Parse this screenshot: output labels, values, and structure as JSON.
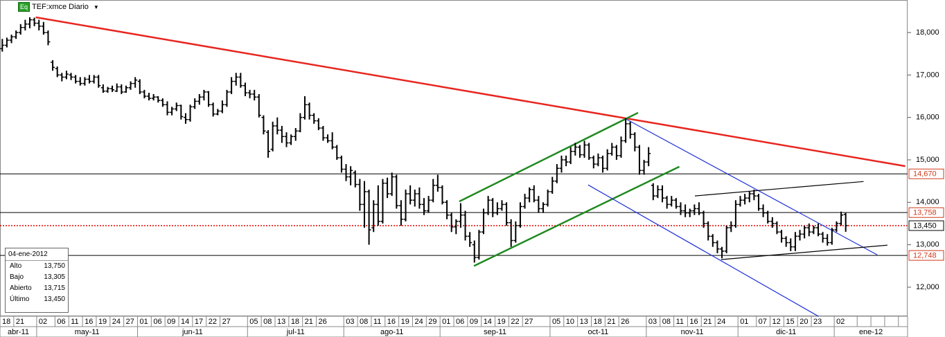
{
  "chart_data": {
    "type": "ohlc",
    "badge": "Eq",
    "title": "TEF:xmce Diario",
    "color": "#000000",
    "ylim": [
      11.315,
      18.767
    ],
    "yticks": [
      {
        "value": 12,
        "label": "12,000"
      },
      {
        "value": 13,
        "label": "13,000"
      },
      {
        "value": 14,
        "label": "14,000"
      },
      {
        "value": 15,
        "label": "15,000"
      },
      {
        "value": 16,
        "label": "16,000"
      },
      {
        "value": 17,
        "label": "17,000"
      },
      {
        "value": 18,
        "label": "18,000"
      }
    ],
    "months": [
      "abr-11",
      "may-11",
      "jun-11",
      "jul-11",
      "ago-11",
      "sep-11",
      "oct-11",
      "nov-11",
      "dic-11",
      "ene-12"
    ],
    "categories": [
      "18",
      null,
      null,
      "21",
      null,
      null,
      null,
      null,
      "02",
      null,
      null,
      null,
      "06",
      null,
      null,
      "11",
      null,
      null,
      "16",
      null,
      null,
      "19",
      null,
      null,
      "24",
      null,
      null,
      "27",
      null,
      null,
      "01",
      null,
      null,
      "06",
      null,
      null,
      "09",
      null,
      null,
      "14",
      null,
      null,
      "17",
      null,
      null,
      "22",
      null,
      null,
      "27",
      null,
      null,
      null,
      null,
      null,
      "05",
      null,
      null,
      "08",
      null,
      null,
      "13",
      null,
      null,
      "18",
      null,
      null,
      "21",
      null,
      null,
      "26",
      null,
      null,
      null,
      null,
      null,
      "03",
      null,
      null,
      "08",
      null,
      null,
      "11",
      null,
      null,
      "16",
      null,
      null,
      "19",
      null,
      null,
      "24",
      null,
      null,
      "29",
      null,
      null,
      "01",
      null,
      null,
      "06",
      null,
      null,
      "09",
      null,
      null,
      "14",
      null,
      null,
      "19",
      null,
      null,
      "22",
      null,
      null,
      "27",
      null,
      null,
      null,
      null,
      null,
      "05",
      null,
      null,
      "10",
      null,
      null,
      "13",
      null,
      null,
      "18",
      null,
      null,
      "21",
      null,
      null,
      "26",
      null,
      null,
      null,
      null,
      null,
      "03",
      null,
      null,
      "08",
      null,
      null,
      "11",
      null,
      null,
      "16",
      null,
      null,
      "21",
      null,
      null,
      "24",
      null,
      null,
      null,
      null,
      "01",
      null,
      null,
      null,
      "07",
      null,
      null,
      "12",
      null,
      null,
      "15",
      null,
      null,
      "20",
      null,
      null,
      "23",
      null,
      null,
      null,
      null,
      "02",
      null,
      null,
      null,
      null,
      null,
      null,
      null,
      null,
      null,
      null,
      null,
      null,
      null,
      null,
      null
    ],
    "ohlc": [
      [
        17.62,
        17.85,
        17.55,
        17.7
      ],
      [
        17.7,
        17.88,
        17.65,
        17.82
      ],
      [
        17.82,
        17.95,
        17.75,
        17.9
      ],
      [
        17.9,
        18.05,
        17.85,
        18.0
      ],
      [
        18.0,
        18.2,
        17.95,
        18.12
      ],
      [
        18.12,
        18.3,
        18.05,
        18.2
      ],
      [
        18.2,
        18.36,
        18.1,
        18.3
      ],
      [
        18.3,
        18.35,
        18.15,
        18.22
      ],
      [
        18.22,
        18.3,
        18.05,
        18.15
      ],
      [
        18.15,
        18.25,
        17.95,
        18.0
      ],
      [
        18.0,
        18.05,
        17.7,
        17.78
      ],
      [
        17.3,
        17.35,
        17.1,
        17.18
      ],
      [
        17.15,
        17.2,
        16.95,
        17.0
      ],
      [
        17.0,
        17.05,
        16.85,
        16.95
      ],
      [
        16.95,
        17.1,
        16.9,
        17.02
      ],
      [
        17.0,
        17.05,
        16.88,
        16.95
      ],
      [
        16.95,
        17.0,
        16.8,
        16.85
      ],
      [
        16.85,
        16.95,
        16.75,
        16.8
      ],
      [
        16.8,
        16.95,
        16.75,
        16.9
      ],
      [
        16.9,
        17.0,
        16.8,
        16.85
      ],
      [
        16.85,
        17.0,
        16.8,
        16.95
      ],
      [
        16.95,
        17.0,
        16.7,
        16.75
      ],
      [
        16.7,
        16.78,
        16.58,
        16.62
      ],
      [
        16.62,
        16.72,
        16.58,
        16.68
      ],
      [
        16.68,
        16.75,
        16.6,
        16.65
      ],
      [
        16.62,
        16.8,
        16.6,
        16.72
      ],
      [
        16.72,
        16.78,
        16.55,
        16.6
      ],
      [
        16.6,
        16.75,
        16.58,
        16.7
      ],
      [
        16.7,
        16.85,
        16.65,
        16.8
      ],
      [
        16.8,
        16.95,
        16.7,
        16.88
      ],
      [
        16.85,
        16.9,
        16.55,
        16.6
      ],
      [
        16.6,
        16.65,
        16.45,
        16.5
      ],
      [
        16.5,
        16.58,
        16.4,
        16.45
      ],
      [
        16.45,
        16.55,
        16.4,
        16.48
      ],
      [
        16.48,
        16.5,
        16.35,
        16.4
      ],
      [
        16.4,
        16.45,
        16.25,
        16.3
      ],
      [
        16.3,
        16.38,
        16.05,
        16.12
      ],
      [
        16.12,
        16.25,
        16.05,
        16.2
      ],
      [
        16.2,
        16.35,
        16.15,
        16.28
      ],
      [
        16.28,
        16.3,
        15.95,
        16.02
      ],
      [
        16.0,
        16.1,
        15.85,
        15.95
      ],
      [
        15.95,
        16.3,
        15.9,
        16.25
      ],
      [
        16.25,
        16.45,
        16.2,
        16.38
      ],
      [
        16.38,
        16.55,
        16.3,
        16.48
      ],
      [
        16.48,
        16.65,
        16.4,
        16.6
      ],
      [
        16.6,
        16.62,
        16.25,
        16.3
      ],
      [
        16.3,
        16.35,
        16.02,
        16.08
      ],
      [
        16.08,
        16.2,
        16.05,
        16.15
      ],
      [
        16.15,
        16.4,
        16.1,
        16.3
      ],
      [
        16.3,
        16.65,
        16.25,
        16.6
      ],
      [
        16.6,
        16.95,
        16.55,
        16.85
      ],
      [
        16.85,
        17.05,
        16.75,
        16.95
      ],
      [
        16.95,
        17.05,
        16.7,
        16.75
      ],
      [
        16.75,
        16.82,
        16.5,
        16.58
      ],
      [
        16.58,
        16.65,
        16.45,
        16.55
      ],
      [
        16.55,
        16.65,
        16.4,
        16.48
      ],
      [
        16.48,
        16.55,
        16.0,
        16.05
      ],
      [
        16.0,
        16.05,
        15.6,
        15.68
      ],
      [
        15.65,
        15.7,
        15.05,
        15.2
      ],
      [
        15.25,
        15.9,
        15.2,
        15.8
      ],
      [
        15.8,
        16.0,
        15.6,
        15.7
      ],
      [
        15.7,
        15.8,
        15.4,
        15.55
      ],
      [
        15.55,
        15.65,
        15.3,
        15.4
      ],
      [
        15.4,
        15.6,
        15.35,
        15.55
      ],
      [
        15.55,
        15.75,
        15.45,
        15.68
      ],
      [
        15.68,
        16.1,
        15.65,
        16.0
      ],
      [
        16.0,
        16.5,
        15.95,
        16.3
      ],
      [
        16.3,
        16.35,
        15.95,
        16.05
      ],
      [
        16.05,
        16.1,
        15.85,
        15.92
      ],
      [
        15.92,
        15.98,
        15.7,
        15.75
      ],
      [
        15.75,
        15.8,
        15.45,
        15.52
      ],
      [
        15.52,
        15.6,
        15.4,
        15.45
      ],
      [
        15.45,
        15.65,
        15.25,
        15.3
      ],
      [
        15.3,
        15.35,
        15.0,
        15.05
      ],
      [
        15.05,
        15.1,
        14.7,
        14.78
      ],
      [
        14.78,
        14.9,
        14.5,
        14.6
      ],
      [
        14.6,
        14.85,
        14.4,
        14.75
      ],
      [
        14.7,
        14.75,
        14.35,
        14.42
      ],
      [
        14.42,
        14.55,
        13.8,
        13.95
      ],
      [
        13.95,
        14.5,
        13.4,
        14.25
      ],
      [
        14.25,
        14.3,
        13.0,
        13.35
      ],
      [
        13.4,
        14.05,
        13.3,
        13.95
      ],
      [
        13.95,
        14.4,
        13.45,
        13.55
      ],
      [
        13.55,
        14.55,
        13.5,
        14.45
      ],
      [
        14.45,
        14.58,
        14.1,
        14.2
      ],
      [
        14.2,
        14.7,
        14.15,
        14.6
      ],
      [
        14.6,
        14.65,
        13.85,
        13.92
      ],
      [
        13.92,
        14.05,
        13.45,
        13.6
      ],
      [
        13.6,
        14.3,
        13.55,
        14.2
      ],
      [
        14.2,
        14.4,
        13.95,
        14.05
      ],
      [
        14.05,
        14.3,
        13.9,
        14.2
      ],
      [
        14.2,
        14.35,
        13.85,
        13.95
      ],
      [
        13.95,
        14.1,
        13.7,
        13.8
      ],
      [
        13.8,
        14.15,
        13.75,
        14.05
      ],
      [
        14.05,
        14.55,
        14.0,
        14.4
      ],
      [
        14.4,
        14.65,
        14.25,
        14.35
      ],
      [
        14.35,
        14.4,
        13.95,
        14.0
      ],
      [
        14.0,
        14.05,
        13.6,
        13.7
      ],
      [
        13.7,
        13.75,
        13.3,
        13.42
      ],
      [
        13.42,
        13.6,
        13.25,
        13.55
      ],
      [
        13.55,
        13.98,
        13.4,
        13.7
      ],
      [
        13.7,
        13.8,
        13.1,
        13.2
      ],
      [
        13.2,
        13.3,
        12.95,
        13.05
      ],
      [
        13.0,
        13.1,
        12.58,
        12.7
      ],
      [
        12.7,
        13.35,
        12.65,
        13.3
      ],
      [
        13.3,
        13.85,
        13.25,
        13.75
      ],
      [
        13.75,
        14.15,
        13.7,
        14.05
      ],
      [
        14.05,
        14.1,
        13.65,
        13.75
      ],
      [
        13.75,
        14.0,
        13.7,
        13.85
      ],
      [
        13.85,
        14.05,
        13.8,
        13.95
      ],
      [
        13.95,
        14.0,
        13.45,
        13.52
      ],
      [
        13.52,
        13.6,
        12.95,
        13.1
      ],
      [
        13.1,
        13.55,
        13.05,
        13.45
      ],
      [
        13.45,
        14.0,
        13.4,
        13.9
      ],
      [
        13.9,
        14.2,
        13.85,
        14.1
      ],
      [
        14.1,
        14.35,
        14.0,
        14.3
      ],
      [
        14.3,
        14.4,
        14.0,
        14.05
      ],
      [
        14.05,
        14.15,
        13.75,
        13.85
      ],
      [
        13.85,
        14.0,
        13.75,
        13.95
      ],
      [
        13.95,
        14.3,
        13.9,
        14.25
      ],
      [
        14.25,
        14.6,
        14.2,
        14.5
      ],
      [
        14.5,
        14.9,
        14.45,
        14.8
      ],
      [
        14.8,
        15.1,
        14.7,
        15.0
      ],
      [
        15.0,
        15.1,
        14.85,
        14.95
      ],
      [
        14.95,
        15.3,
        14.9,
        15.2
      ],
      [
        15.2,
        15.4,
        15.1,
        15.3
      ],
      [
        15.3,
        15.35,
        15.05,
        15.12
      ],
      [
        15.12,
        15.45,
        15.05,
        15.35
      ],
      [
        15.35,
        15.4,
        15.0,
        15.05
      ],
      [
        15.05,
        15.1,
        14.8,
        14.9
      ],
      [
        14.9,
        15.15,
        14.85,
        15.05
      ],
      [
        15.05,
        15.1,
        14.7,
        14.8
      ],
      [
        14.8,
        15.25,
        14.75,
        15.15
      ],
      [
        15.15,
        15.4,
        15.1,
        15.3
      ],
      [
        15.3,
        15.35,
        15.0,
        15.1
      ],
      [
        15.1,
        15.55,
        15.05,
        15.45
      ],
      [
        15.45,
        15.98,
        15.4,
        15.85
      ],
      [
        15.85,
        15.9,
        15.5,
        15.6
      ],
      [
        15.6,
        15.65,
        15.2,
        15.3
      ],
      [
        15.3,
        15.35,
        14.65,
        14.75
      ],
      [
        14.75,
        15.0,
        14.65,
        14.95
      ],
      [
        14.95,
        15.3,
        14.85,
        15.15
      ],
      [
        14.4,
        14.45,
        14.05,
        14.15
      ],
      [
        14.15,
        14.4,
        14.1,
        14.3
      ],
      [
        14.3,
        14.4,
        14.0,
        14.1
      ],
      [
        14.1,
        14.15,
        13.85,
        13.95
      ],
      [
        13.95,
        14.15,
        13.9,
        14.05
      ],
      [
        14.05,
        14.1,
        13.85,
        13.9
      ],
      [
        13.9,
        14.0,
        13.7,
        13.8
      ],
      [
        13.8,
        13.95,
        13.65,
        13.75
      ],
      [
        13.75,
        13.85,
        13.65,
        13.8
      ],
      [
        13.8,
        13.95,
        13.7,
        13.85
      ],
      [
        13.85,
        14.0,
        13.7,
        13.75
      ],
      [
        13.75,
        13.8,
        13.4,
        13.5
      ],
      [
        13.5,
        13.55,
        13.1,
        13.2
      ],
      [
        13.2,
        13.25,
        12.95,
        13.05
      ],
      [
        13.05,
        13.1,
        12.8,
        12.9
      ],
      [
        12.9,
        12.95,
        12.68,
        12.85
      ],
      [
        12.85,
        13.45,
        12.8,
        13.4
      ],
      [
        13.4,
        13.55,
        13.3,
        13.45
      ],
      [
        13.45,
        14.05,
        13.4,
        13.95
      ],
      [
        13.95,
        14.15,
        13.9,
        14.05
      ],
      [
        14.05,
        14.2,
        13.95,
        14.1
      ],
      [
        14.1,
        14.25,
        14.0,
        14.2
      ],
      [
        14.2,
        14.3,
        14.05,
        14.15
      ],
      [
        14.15,
        14.2,
        13.8,
        13.85
      ],
      [
        13.85,
        13.95,
        13.65,
        13.75
      ],
      [
        13.75,
        13.8,
        13.5,
        13.55
      ],
      [
        13.55,
        13.65,
        13.4,
        13.5
      ],
      [
        13.5,
        13.55,
        13.25,
        13.3
      ],
      [
        13.3,
        13.35,
        13.05,
        13.15
      ],
      [
        13.15,
        13.2,
        12.95,
        13.05
      ],
      [
        13.05,
        13.15,
        12.85,
        12.95
      ],
      [
        12.95,
        13.3,
        12.85,
        13.2
      ],
      [
        13.2,
        13.35,
        13.1,
        13.25
      ],
      [
        13.25,
        13.45,
        13.15,
        13.4
      ],
      [
        13.4,
        13.5,
        13.2,
        13.3
      ],
      [
        13.3,
        13.45,
        13.25,
        13.4
      ],
      [
        13.4,
        13.5,
        13.2,
        13.25
      ],
      [
        13.25,
        13.3,
        13.05,
        13.15
      ],
      [
        13.15,
        13.25,
        12.98,
        13.05
      ],
      [
        13.05,
        13.4,
        13.0,
        13.35
      ],
      [
        13.35,
        13.55,
        13.3,
        13.5
      ],
      [
        13.5,
        13.78,
        13.45,
        13.7
      ],
      [
        13.715,
        13.75,
        13.305,
        13.45
      ],
      null,
      null,
      null,
      null,
      null,
      null,
      null,
      null,
      null,
      null,
      null,
      null,
      null
    ],
    "hlines": [
      {
        "value": 14.67,
        "label": "14,670",
        "color": "#000000",
        "label_color": "#d0381a",
        "style": "solid"
      },
      {
        "value": 13.758,
        "label": "13,758",
        "color": "#000000",
        "label_color": "#d0381a",
        "style": "solid"
      },
      {
        "value": 13.45,
        "label": "13,450",
        "color": "#e00000",
        "label_color": "#000000",
        "style": "dotted"
      },
      {
        "value": 12.748,
        "label": "12,748",
        "color": "#000000",
        "label_color": "#d0381a",
        "style": "solid"
      }
    ],
    "trendlines": [
      {
        "x": [
          7.3,
          197.0
        ],
        "y": [
          18.359,
          14.852
        ],
        "color": "#e8251f"
      },
      {
        "x": [
          99.7,
          138.7
        ],
        "y": [
          14.02,
          16.11
        ],
        "color": "#1f8a1f"
      },
      {
        "x": [
          102.9,
          147.7
        ],
        "y": [
          12.5,
          14.84
        ],
        "color": "#1f8a1f"
      },
      {
        "x": [
          136.1,
          190.9
        ],
        "y": [
          15.96,
          12.76
        ],
        "color": "#1c2fd8"
      },
      {
        "x": [
          127.8,
          178.1
        ],
        "y": [
          14.41,
          11.31
        ],
        "color": "#1c2fd8"
      },
      {
        "x": [
          151.1,
          187.9
        ],
        "y": [
          14.15,
          14.49
        ],
        "color": "#000000"
      },
      {
        "x": [
          156.8,
          193.1
        ],
        "y": [
          12.65,
          12.99
        ],
        "color": "#000000"
      }
    ],
    "info": {
      "date": "04-ene-2012",
      "rows": [
        [
          "Alto",
          "13,750"
        ],
        [
          "Bajo",
          "13,305"
        ],
        [
          "Abierto",
          "13,715"
        ],
        [
          "Último",
          "13,450"
        ]
      ]
    }
  }
}
